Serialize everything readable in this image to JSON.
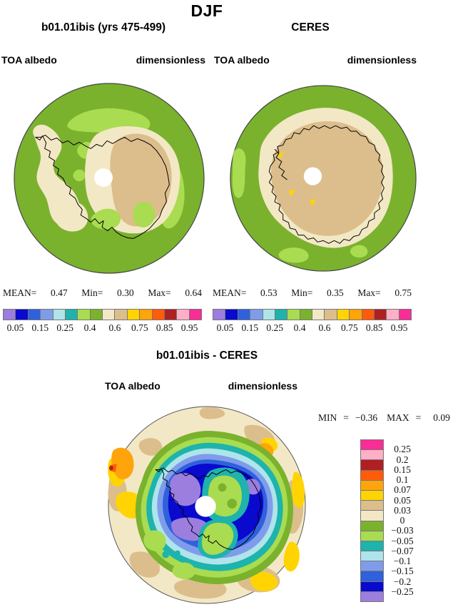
{
  "title": "DJF",
  "panels": {
    "model": {
      "title": "b01.01ibis (yrs 475-499)",
      "var_label": "TOA albedo",
      "units_label": "dimensionless",
      "stats": {
        "mean_label": "MEAN=",
        "mean": "0.47",
        "min_label": "Min=",
        "min": "0.30",
        "max_label": "Max=",
        "max": "0.64"
      }
    },
    "obs": {
      "title": "CERES",
      "var_label": "TOA albedo",
      "units_label": "dimensionless",
      "stats": {
        "mean_label": "MEAN=",
        "mean": "0.53",
        "min_label": "Min=",
        "min": "0.35",
        "max_label": "Max=",
        "max": "0.75"
      }
    },
    "diff": {
      "title": "b01.01ibis - CERES",
      "var_label": "TOA albedo",
      "units_label": "dimensionless",
      "stats": {
        "min_label": "MIN",
        "eq1": "=",
        "min": "−0.36",
        "max_label": "MAX",
        "eq2": "=",
        "max": "0.09"
      }
    }
  },
  "albedo_colorbar": {
    "n_cells": 16,
    "colors": [
      "#9C7EDE",
      "#0A09CE",
      "#3061DC",
      "#7F9CEA",
      "#AEE4EA",
      "#1EB3AC",
      "#A9DC50",
      "#7AB22E",
      "#F3E8C5",
      "#DCBE8C",
      "#FFD402",
      "#FFA40A",
      "#FE5B0B",
      "#AE2023",
      "#FFAFC6",
      "#FA2C95"
    ],
    "tick_labels": [
      "0.05",
      "0.15",
      "0.25",
      "0.4",
      "0.6",
      "0.75",
      "0.85",
      "0.95"
    ],
    "tick_positions": [
      1,
      3,
      5,
      7,
      9,
      11,
      13,
      15
    ]
  },
  "diff_colorbar": {
    "n_cells": 16,
    "colors": [
      "#FA2C95",
      "#FFAFC6",
      "#AE2023",
      "#FE5B0B",
      "#FFA40A",
      "#FFD402",
      "#DCBE8C",
      "#F3E8C5",
      "#7AB22E",
      "#A9DC50",
      "#1EB3AC",
      "#AEE4EA",
      "#7F9CEA",
      "#3061DC",
      "#0A09CE",
      "#9C7EDE"
    ],
    "tick_labels": [
      "0.25",
      "0.2",
      "0.15",
      "0.1",
      "0.07",
      "0.05",
      "0.03",
      "0",
      "−0.03",
      "−0.05",
      "−0.07",
      "−0.1",
      "−0.15",
      "−0.2",
      "−0.25"
    ]
  },
  "chart_data": {
    "type": "heatmap",
    "title": "DJF",
    "description": "South polar stereographic filled-contour maps of DJF top-of-atmosphere albedo: model run b01.01ibis (yrs 475-499), CERES observations, and the model-minus-CERES difference.",
    "variable": "TOA albedo",
    "units": "dimensionless",
    "projection": "south polar stereographic",
    "panels": [
      {
        "name": "b01.01ibis (yrs 475-499)",
        "mean": 0.47,
        "min": 0.3,
        "max": 0.64
      },
      {
        "name": "CERES",
        "mean": 0.53,
        "min": 0.35,
        "max": 0.75
      },
      {
        "name": "b01.01ibis - CERES",
        "min": -0.36,
        "max": 0.09
      }
    ],
    "albedo_contour_levels": [
      0.05,
      0.1,
      0.15,
      0.2,
      0.25,
      0.3,
      0.4,
      0.5,
      0.6,
      0.7,
      0.75,
      0.8,
      0.85,
      0.9,
      0.95
    ],
    "difference_contour_levels": [
      -0.25,
      -0.2,
      -0.15,
      -0.1,
      -0.07,
      -0.05,
      -0.03,
      0,
      0.03,
      0.05,
      0.07,
      0.1,
      0.15,
      0.2,
      0.25
    ],
    "palette_low_to_high": [
      "#9C7EDE",
      "#0A09CE",
      "#3061DC",
      "#7F9CEA",
      "#AEE4EA",
      "#1EB3AC",
      "#A9DC50",
      "#7AB22E",
      "#F3E8C5",
      "#DCBE8C",
      "#FFD402",
      "#FFA40A",
      "#FE5B0B",
      "#AE2023",
      "#FFAFC6",
      "#FA2C95"
    ],
    "legend_position": {
      "albedo_bars": "below each map",
      "difference_bar": "right of difference map"
    },
    "grid": false
  }
}
